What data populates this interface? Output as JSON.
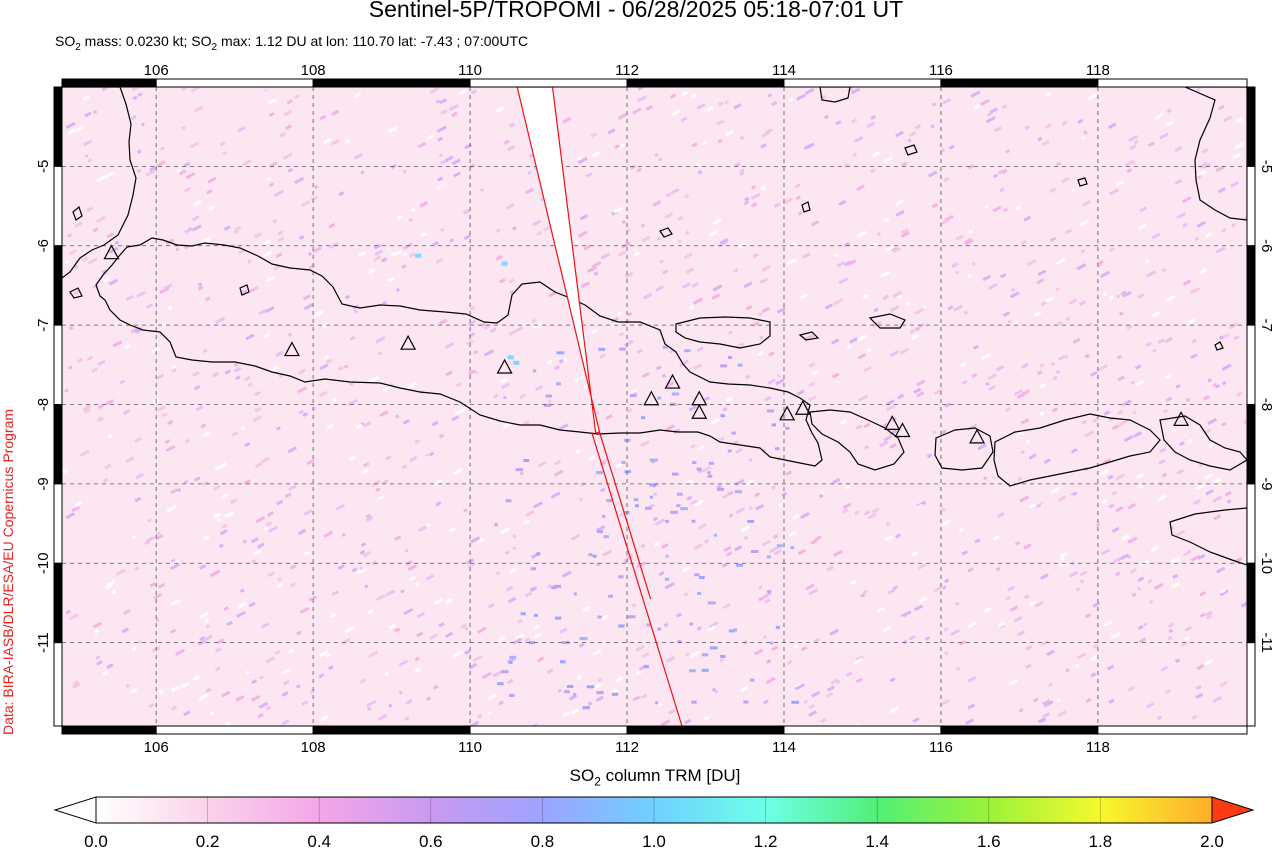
{
  "header": {
    "title": "Sentinel-5P/TROPOMI - 06/28/2025 05:18-07:01 UT",
    "info_prefix": "SO",
    "info_mass": " mass: 0.0230 kt; SO",
    "info_max": " max: 1.12 DU at lon: 110.70 lat: -7.43 ; 07:00UTC"
  },
  "credit": "Data: BIRA-IASB/DLR/ESA/EU Copernicus Program",
  "map": {
    "lon_range": [
      104.8,
      119.9
    ],
    "lat_range": [
      -12.05,
      -4.0
    ],
    "lon_ticks": [
      "106",
      "108",
      "110",
      "112",
      "114",
      "116",
      "118"
    ],
    "lat_ticks": [
      "-5",
      "-6",
      "-7",
      "-8",
      "-9",
      "-10",
      "-11"
    ],
    "grid": "dashed",
    "background_color": "#fbe6f2",
    "coast_color": "#000000",
    "swath_edge_color": "#ee1111",
    "swath_gap_lon": [
      [
        110.6,
        -4.0
      ],
      [
        111.05,
        -4.0
      ],
      [
        111.6,
        -8.35
      ],
      [
        111.65,
        -8.35
      ]
    ],
    "swath_edge_line": [
      [
        111.55,
        -8.35
      ],
      [
        112.7,
        -12.05
      ]
    ],
    "volcano_marker": "triangle-outline",
    "volcanoes": [
      [
        105.43,
        -6.1
      ],
      [
        107.73,
        -7.32
      ],
      [
        109.21,
        -7.24
      ],
      [
        110.44,
        -7.54
      ],
      [
        112.31,
        -7.94
      ],
      [
        112.58,
        -7.73
      ],
      [
        112.92,
        -7.94
      ],
      [
        112.92,
        -8.11
      ],
      [
        114.04,
        -8.13
      ],
      [
        114.24,
        -8.06
      ],
      [
        115.38,
        -8.25
      ],
      [
        115.51,
        -8.34
      ],
      [
        116.46,
        -8.42
      ],
      [
        119.06,
        -8.2
      ]
    ]
  },
  "colorbar": {
    "label_prefix": "SO",
    "label_suffix": " column TRM [DU]",
    "ticks": [
      "0.0",
      "0.2",
      "0.4",
      "0.6",
      "0.8",
      "1.0",
      "1.2",
      "1.4",
      "1.6",
      "1.8",
      "2.0"
    ],
    "range": [
      0.0,
      2.0
    ],
    "colors": [
      "#ffffff",
      "#fbd3ea",
      "#f3a7e8",
      "#c99af0",
      "#9da3ff",
      "#6fd0ff",
      "#6effe8",
      "#52ef77",
      "#9bf23a",
      "#f6f82d",
      "#ffad2b",
      "#ff3b13"
    ],
    "extend": "both"
  }
}
